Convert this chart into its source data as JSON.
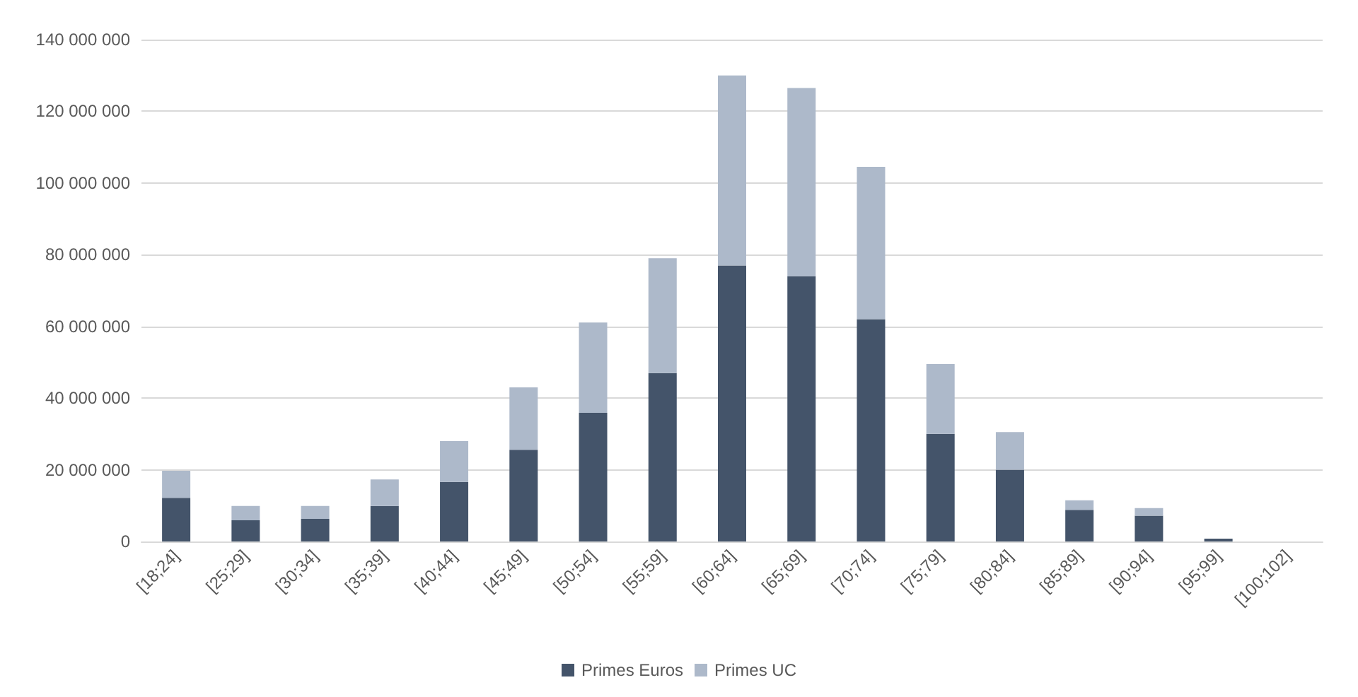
{
  "chart_data": {
    "type": "bar",
    "stacked": true,
    "categories": [
      "[18;24]",
      "[25;29]",
      "[30;34]",
      "[35;39]",
      "[40;44]",
      "[45;49]",
      "[50;54]",
      "[55;59]",
      "[60;64]",
      "[65;69]",
      "[70;74]",
      "[75;79]",
      "[80;84]",
      "[85;89]",
      "[90;94]",
      "[95;99]",
      "[100;102]"
    ],
    "series": [
      {
        "name": "Primes Euros",
        "color": "#44546a",
        "values": [
          12200000,
          5900000,
          6300000,
          9900000,
          16600000,
          25600000,
          35900000,
          47000000,
          77000000,
          74000000,
          62000000,
          30000000,
          20000000,
          8800000,
          7200000,
          800000,
          0
        ]
      },
      {
        "name": "Primes UC",
        "color": "#adb9ca",
        "values": [
          7500000,
          4000000,
          3600000,
          7400000,
          11400000,
          17400000,
          25200000,
          32000000,
          53000000,
          52500000,
          42500000,
          19500000,
          10500000,
          2700000,
          2100000,
          0,
          0
        ]
      }
    ],
    "ylim": [
      0,
      140000000
    ],
    "yticks": [
      0,
      20000000,
      40000000,
      60000000,
      80000000,
      100000000,
      120000000,
      140000000
    ],
    "grid": "y",
    "legend": "bottom"
  }
}
